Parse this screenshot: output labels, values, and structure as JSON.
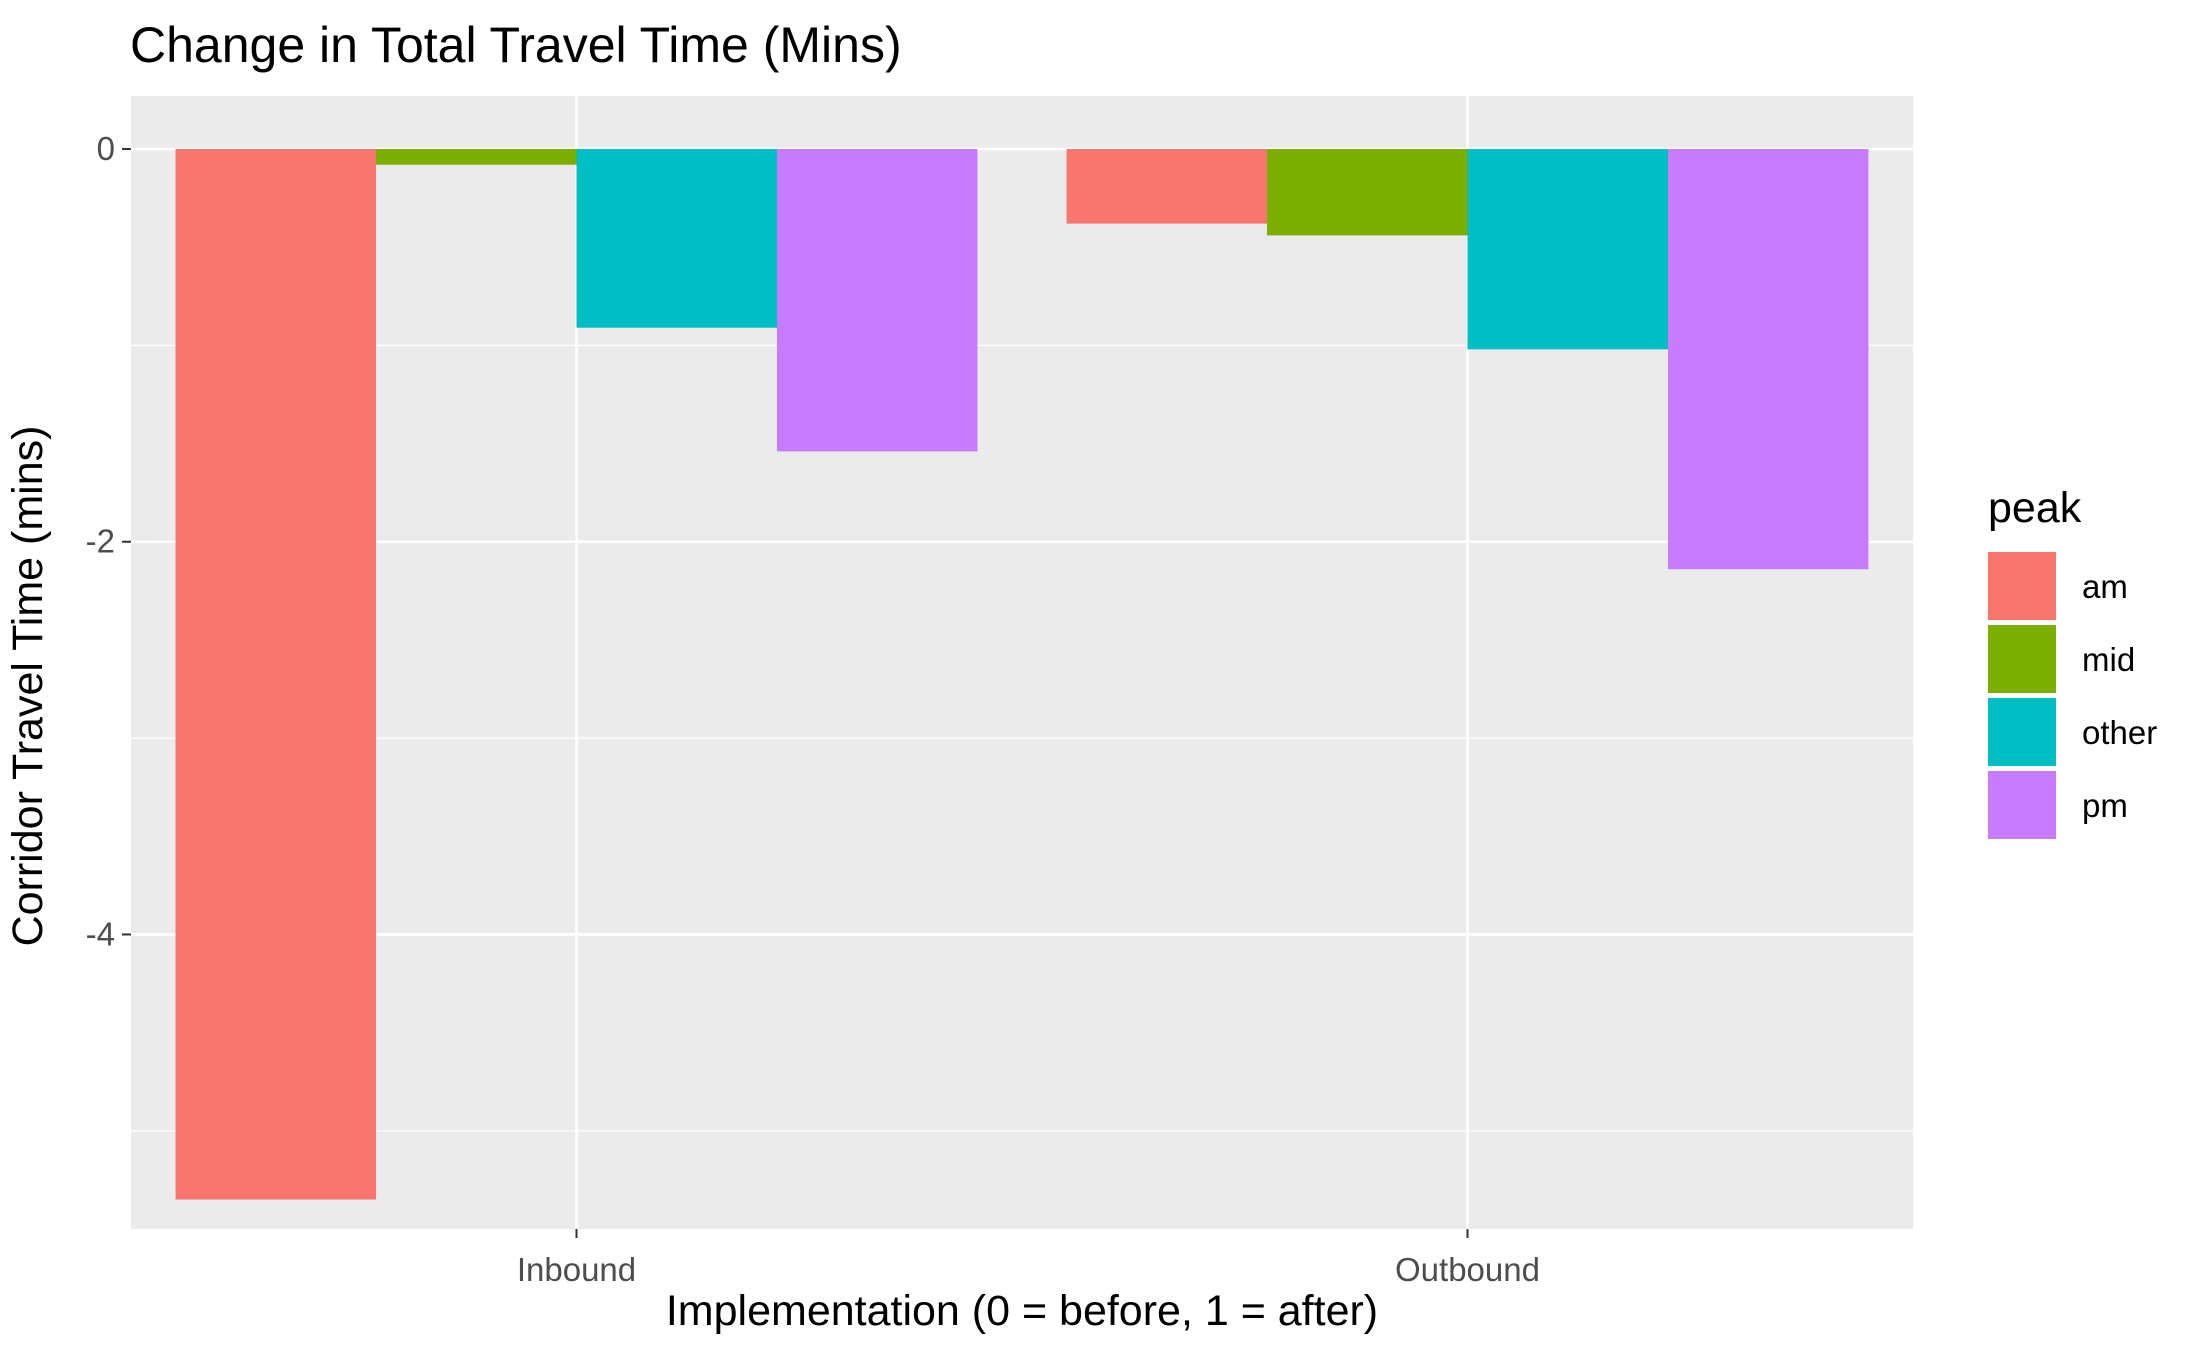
{
  "chart_data": {
    "type": "bar",
    "title": "Change in Total Travel Time (Mins)",
    "xlabel": "Implementation (0 = before, 1 = after)",
    "ylabel": "Corridor Travel Time (mins)",
    "categories": [
      "Inbound",
      "Outbound"
    ],
    "ylim": [
      -5.5,
      0.27
    ],
    "yticks": [
      0,
      -2,
      -4
    ],
    "grid": true,
    "legend": {
      "title": "peak",
      "position": "right"
    },
    "series": [
      {
        "name": "am",
        "color": "#F8766D",
        "values": [
          -5.35,
          -0.38
        ]
      },
      {
        "name": "mid",
        "color": "#7CAE00",
        "values": [
          -0.08,
          -0.44
        ]
      },
      {
        "name": "other",
        "color": "#00BFC4",
        "values": [
          -0.91,
          -1.02
        ]
      },
      {
        "name": "pm",
        "color": "#C77CFF",
        "values": [
          -1.54,
          -2.14
        ]
      }
    ]
  }
}
